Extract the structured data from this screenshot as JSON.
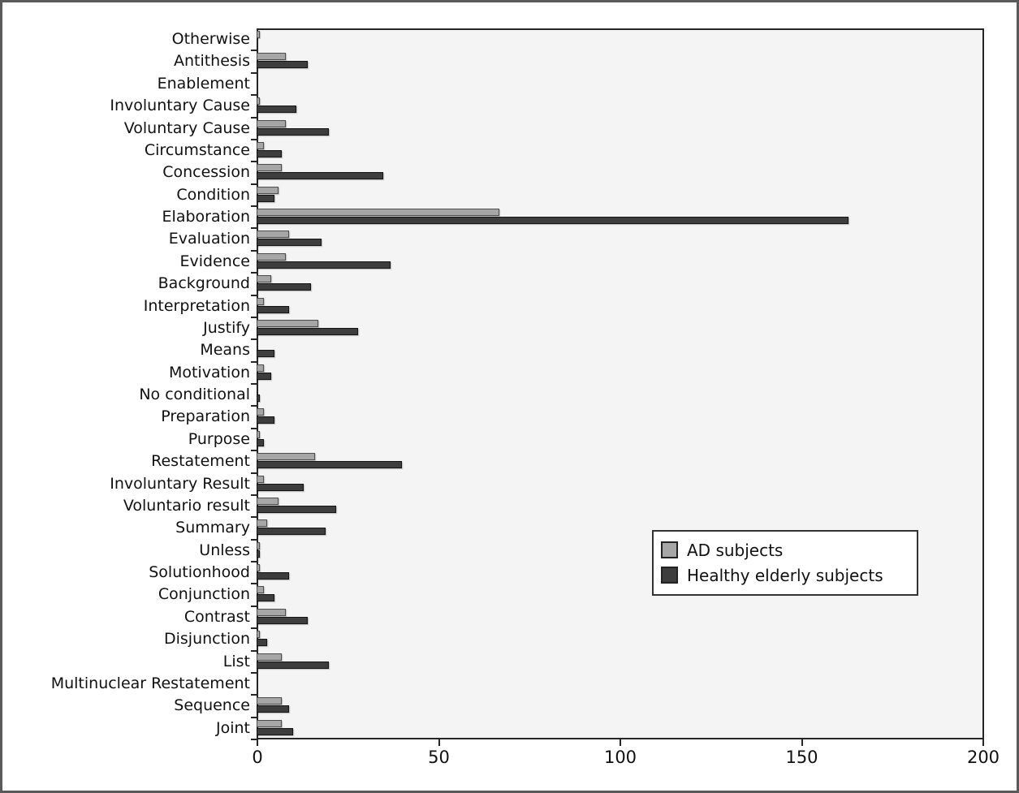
{
  "figure": {
    "background": "#ffffff",
    "frame_border_color": "#5a5a5a",
    "plot_background": "#f4f4f4",
    "axis_color": "#262626"
  },
  "legend": {
    "items": [
      {
        "label": "AD subjects",
        "color": "#a6a6a6"
      },
      {
        "label": "Healthy elderly subjects",
        "color": "#3d3d3d"
      }
    ]
  },
  "chart_data": {
    "type": "bar",
    "orientation": "horizontal",
    "title": "",
    "xlabel": "",
    "ylabel": "",
    "xlim": [
      0,
      200
    ],
    "x_ticks": [
      0,
      50,
      100,
      150,
      200
    ],
    "grid": false,
    "legend_position": "center-right",
    "categories": [
      "Otherwise",
      "Antithesis",
      "Enablement",
      "Involuntary Cause",
      "Voluntary Cause",
      "Circumstance",
      "Concession",
      "Condition",
      "Elaboration",
      "Evaluation",
      "Evidence",
      "Background",
      "Interpretation",
      "Justify",
      "Means",
      "Motivation",
      "No conditional",
      "Preparation",
      "Purpose",
      "Restatement",
      "Involuntary Result",
      "Voluntario result",
      "Summary",
      "Unless",
      "Solutionhood",
      "Conjunction",
      "Contrast",
      "Disjunction",
      "List",
      "Multinuclear Restatement",
      "Sequence",
      "Joint"
    ],
    "series": [
      {
        "name": "AD subjects",
        "color": "#a6a6a6",
        "values": [
          1,
          8,
          0,
          1,
          8,
          2,
          7,
          6,
          67,
          9,
          8,
          4,
          2,
          17,
          0,
          2,
          0,
          2,
          1,
          16,
          2,
          6,
          3,
          1,
          1,
          2,
          8,
          1,
          7,
          0,
          7,
          7
        ]
      },
      {
        "name": "Healthy elderly subjects",
        "color": "#3d3d3d",
        "values": [
          0,
          14,
          0,
          11,
          20,
          7,
          35,
          5,
          163,
          18,
          37,
          15,
          9,
          28,
          5,
          4,
          1,
          5,
          2,
          40,
          13,
          22,
          19,
          1,
          9,
          5,
          14,
          3,
          20,
          0,
          9,
          10
        ]
      }
    ]
  }
}
